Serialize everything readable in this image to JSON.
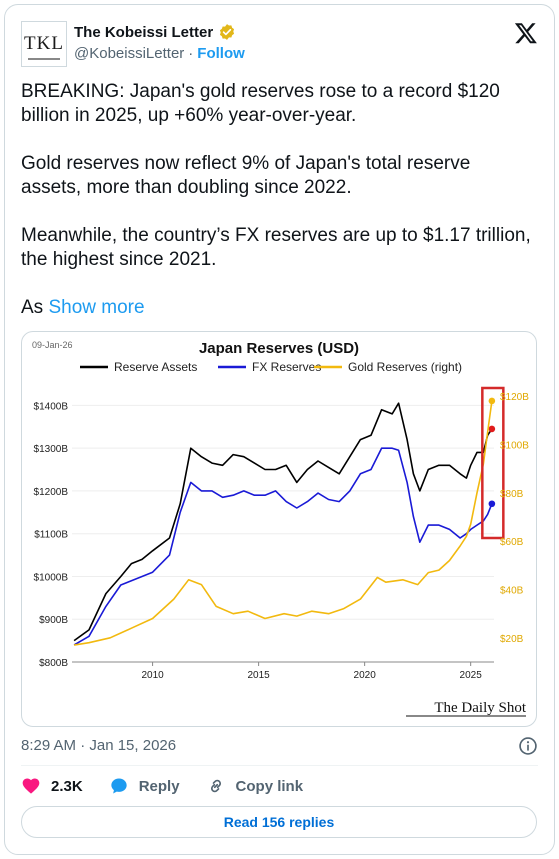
{
  "author": {
    "avatar_text": "TKL",
    "name": "The Kobeissi Letter",
    "handle": "@KobeissiLetter",
    "separator": "·",
    "follow_label": "Follow"
  },
  "tweet": {
    "paragraphs": [
      "BREAKING: Japan's gold reserves rose to a record $120 billion in 2025, up +60% year-over-year.",
      "Gold reserves now reflect 9% of Japan's total reserve assets, more than doubling since 2022.",
      "Meanwhile, the country’s FX reserves are up to $1.17 trillion, the highest since 2021."
    ],
    "truncated_start": "As",
    "show_more": "Show more",
    "timestamp": "8:29 AM · Jan 15, 2026"
  },
  "actions": {
    "likes": "2.3K",
    "reply_label": "Reply",
    "copy_label": "Copy link",
    "read_replies": "Read 156 replies"
  },
  "colors": {
    "accent": "#1d9bf0",
    "like": "#f91880",
    "reserve_assets": "#000000",
    "fx_reserves": "#1a1ad6",
    "gold_reserves": "#f2b90f",
    "highlight_box": "#d42a2a"
  },
  "chart_data": {
    "type": "line",
    "date_label": "09-Jan-26",
    "title": "Japan Reserves (USD)",
    "x_ticks": [
      "2010",
      "2015",
      "2020",
      "2025"
    ],
    "left_ticks": [
      "$1400B",
      "$1300B",
      "$1200B",
      "$1100B",
      "$1000B",
      "$900B",
      "$800B"
    ],
    "right_ticks": [
      "$120B",
      "$100B",
      "$80B",
      "$60B",
      "$40B",
      "$20B"
    ],
    "ylim_left": [
      800,
      1450
    ],
    "ylim_right": [
      10,
      125
    ],
    "xlim": [
      2006.2,
      2026.1
    ],
    "legend_position": "top",
    "source": "The Daily Shot",
    "series": [
      {
        "name": "Reserve Assets",
        "axis": "left",
        "points": [
          [
            2006.3,
            850
          ],
          [
            2007,
            875
          ],
          [
            2007.8,
            960
          ],
          [
            2008.5,
            1000
          ],
          [
            2009,
            1030
          ],
          [
            2009.5,
            1040
          ],
          [
            2010,
            1060
          ],
          [
            2010.8,
            1090
          ],
          [
            2011.3,
            1170
          ],
          [
            2011.8,
            1300
          ],
          [
            2012.3,
            1280
          ],
          [
            2012.8,
            1265
          ],
          [
            2013.3,
            1260
          ],
          [
            2013.8,
            1285
          ],
          [
            2014.3,
            1280
          ],
          [
            2014.8,
            1265
          ],
          [
            2015.3,
            1250
          ],
          [
            2015.8,
            1250
          ],
          [
            2016.3,
            1260
          ],
          [
            2016.8,
            1220
          ],
          [
            2017.3,
            1250
          ],
          [
            2017.8,
            1270
          ],
          [
            2018.3,
            1255
          ],
          [
            2018.8,
            1240
          ],
          [
            2019.3,
            1280
          ],
          [
            2019.8,
            1320
          ],
          [
            2020.3,
            1330
          ],
          [
            2020.8,
            1390
          ],
          [
            2021.3,
            1380
          ],
          [
            2021.6,
            1405
          ],
          [
            2022,
            1320
          ],
          [
            2022.3,
            1240
          ],
          [
            2022.6,
            1200
          ],
          [
            2023,
            1250
          ],
          [
            2023.5,
            1260
          ],
          [
            2024,
            1260
          ],
          [
            2024.5,
            1240
          ],
          [
            2024.8,
            1230
          ],
          [
            2025,
            1260
          ],
          [
            2025.3,
            1290
          ],
          [
            2025.6,
            1290
          ],
          [
            2025.8,
            1330
          ],
          [
            2026,
            1345
          ]
        ]
      },
      {
        "name": "FX Reserves",
        "axis": "left",
        "points": [
          [
            2006.3,
            840
          ],
          [
            2007,
            860
          ],
          [
            2007.8,
            930
          ],
          [
            2008.5,
            980
          ],
          [
            2009,
            990
          ],
          [
            2009.5,
            1000
          ],
          [
            2010,
            1010
          ],
          [
            2010.8,
            1050
          ],
          [
            2011.3,
            1150
          ],
          [
            2011.8,
            1220
          ],
          [
            2012.3,
            1200
          ],
          [
            2012.8,
            1200
          ],
          [
            2013.3,
            1185
          ],
          [
            2013.8,
            1190
          ],
          [
            2014.3,
            1200
          ],
          [
            2014.8,
            1190
          ],
          [
            2015.3,
            1190
          ],
          [
            2015.8,
            1200
          ],
          [
            2016.3,
            1175
          ],
          [
            2016.8,
            1160
          ],
          [
            2017.3,
            1175
          ],
          [
            2017.8,
            1195
          ],
          [
            2018.3,
            1180
          ],
          [
            2018.8,
            1175
          ],
          [
            2019.3,
            1200
          ],
          [
            2019.8,
            1240
          ],
          [
            2020.3,
            1250
          ],
          [
            2020.8,
            1300
          ],
          [
            2021.3,
            1300
          ],
          [
            2021.6,
            1295
          ],
          [
            2022,
            1220
          ],
          [
            2022.3,
            1140
          ],
          [
            2022.6,
            1080
          ],
          [
            2023,
            1120
          ],
          [
            2023.5,
            1120
          ],
          [
            2024,
            1110
          ],
          [
            2024.5,
            1090
          ],
          [
            2024.8,
            1100
          ],
          [
            2025,
            1110
          ],
          [
            2025.3,
            1120
          ],
          [
            2025.6,
            1130
          ],
          [
            2025.8,
            1145
          ],
          [
            2026,
            1170
          ]
        ]
      },
      {
        "name": "Gold Reserves (right)",
        "axis": "right",
        "points": [
          [
            2006.3,
            17
          ],
          [
            2007,
            18
          ],
          [
            2008,
            20
          ],
          [
            2009,
            24
          ],
          [
            2010,
            28
          ],
          [
            2011,
            36
          ],
          [
            2011.7,
            44
          ],
          [
            2012.3,
            42
          ],
          [
            2013,
            33
          ],
          [
            2013.8,
            30
          ],
          [
            2014.5,
            31
          ],
          [
            2015.3,
            28
          ],
          [
            2016.2,
            30
          ],
          [
            2016.8,
            29
          ],
          [
            2017.5,
            31
          ],
          [
            2018.3,
            30
          ],
          [
            2019,
            32
          ],
          [
            2019.8,
            36
          ],
          [
            2020.6,
            45
          ],
          [
            2021,
            43
          ],
          [
            2021.8,
            44
          ],
          [
            2022.5,
            42
          ],
          [
            2023,
            47
          ],
          [
            2023.5,
            48
          ],
          [
            2024,
            52
          ],
          [
            2024.5,
            58
          ],
          [
            2024.8,
            62
          ],
          [
            2025,
            67
          ],
          [
            2025.3,
            80
          ],
          [
            2025.6,
            92
          ],
          [
            2025.8,
            105
          ],
          [
            2026,
            118
          ]
        ]
      }
    ]
  }
}
